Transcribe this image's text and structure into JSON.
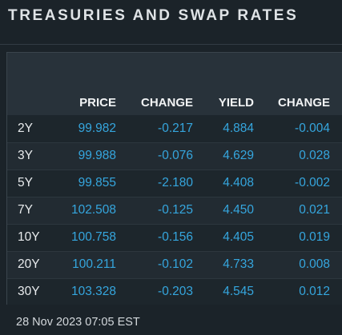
{
  "widget": {
    "title": "TREASURIES AND SWAP RATES",
    "timestamp": "28 Nov 2023 07:05 EST"
  },
  "table": {
    "columns": [
      "PRICE",
      "CHANGE",
      "YIELD",
      "CHANGE"
    ],
    "rows": [
      {
        "tenor": "2Y",
        "price": "99.982",
        "price_change": "-0.217",
        "yield": "4.884",
        "yield_change": "-0.004"
      },
      {
        "tenor": "3Y",
        "price": "99.988",
        "price_change": "-0.076",
        "yield": "4.629",
        "yield_change": "0.028"
      },
      {
        "tenor": "5Y",
        "price": "99.855",
        "price_change": "-2.180",
        "yield": "4.408",
        "yield_change": "-0.002"
      },
      {
        "tenor": "7Y",
        "price": "102.508",
        "price_change": "-0.125",
        "yield": "4.450",
        "yield_change": "0.021"
      },
      {
        "tenor": "10Y",
        "price": "100.758",
        "price_change": "-0.156",
        "yield": "4.405",
        "yield_change": "0.019"
      },
      {
        "tenor": "20Y",
        "price": "100.211",
        "price_change": "-0.102",
        "yield": "4.733",
        "yield_change": "0.008"
      },
      {
        "tenor": "30Y",
        "price": "103.328",
        "price_change": "-0.203",
        "yield": "4.545",
        "yield_change": "0.012"
      }
    ]
  },
  "colors": {
    "background": "#1b2329",
    "header_band": "#28323a",
    "value_blue": "#35a6de",
    "text_light": "#e8ebed"
  }
}
